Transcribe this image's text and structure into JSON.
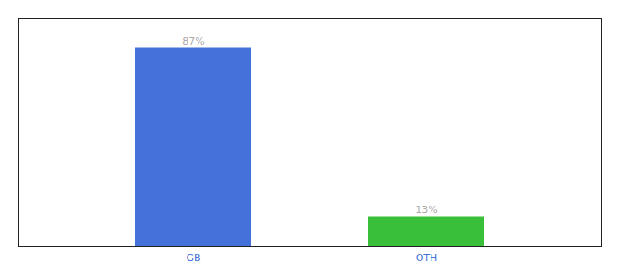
{
  "chart_data": {
    "type": "bar",
    "categories": [
      "GB",
      "OTH"
    ],
    "values": [
      87,
      13
    ],
    "value_labels": [
      "87%",
      "13%"
    ],
    "colors": [
      "#4472db",
      "#3abf3a"
    ],
    "ylim": [
      0,
      100
    ],
    "data_labels": true,
    "tick_labels": "x"
  }
}
